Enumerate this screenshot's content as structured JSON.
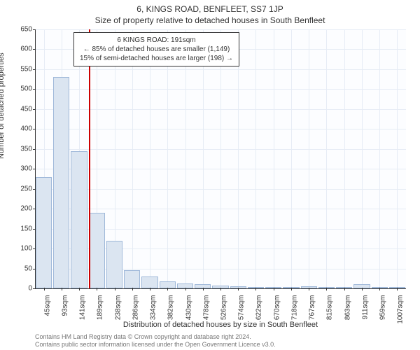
{
  "header": {
    "main_title": "6, KINGS ROAD, BENFLEET, SS7 1JP",
    "sub_title": "Size of property relative to detached houses in South Benfleet"
  },
  "chart": {
    "type": "histogram",
    "plot_bg": "#fcfdff",
    "grid_color": "#e6ecf5",
    "bar_fill": "#dbe5f1",
    "bar_border": "#9fb8d9",
    "highlight_color": "#cc0000",
    "highlight_at_category_index": 3,
    "ylim": [
      0,
      650
    ],
    "ytick_step": 50,
    "y_label": "Number of detached properties",
    "x_label": "Distribution of detached houses by size in South Benfleet",
    "x_tick_labels": [
      "45sqm",
      "93sqm",
      "141sqm",
      "189sqm",
      "238sqm",
      "286sqm",
      "334sqm",
      "382sqm",
      "430sqm",
      "478sqm",
      "526sqm",
      "574sqm",
      "622sqm",
      "670sqm",
      "718sqm",
      "767sqm",
      "815sqm",
      "863sqm",
      "911sqm",
      "959sqm",
      "1007sqm"
    ],
    "bar_values": [
      280,
      530,
      345,
      190,
      120,
      45,
      30,
      18,
      12,
      10,
      7,
      5,
      3,
      3,
      2,
      5,
      2,
      2,
      10,
      2,
      4
    ],
    "info_box": {
      "line1": "6 KINGS ROAD: 191sqm",
      "line2": "← 85% of detached houses are smaller (1,149)",
      "line3": "15% of semi-detached houses are larger (198) →",
      "border_color": "#333333",
      "bg": "#ffffff",
      "font_size": 10
    },
    "tick_font_size": 10,
    "label_font_size": 11
  },
  "attribution": {
    "line1": "Contains HM Land Registry data © Crown copyright and database right 2024.",
    "line2": "Contains public sector information licensed under the Open Government Licence v3.0."
  }
}
